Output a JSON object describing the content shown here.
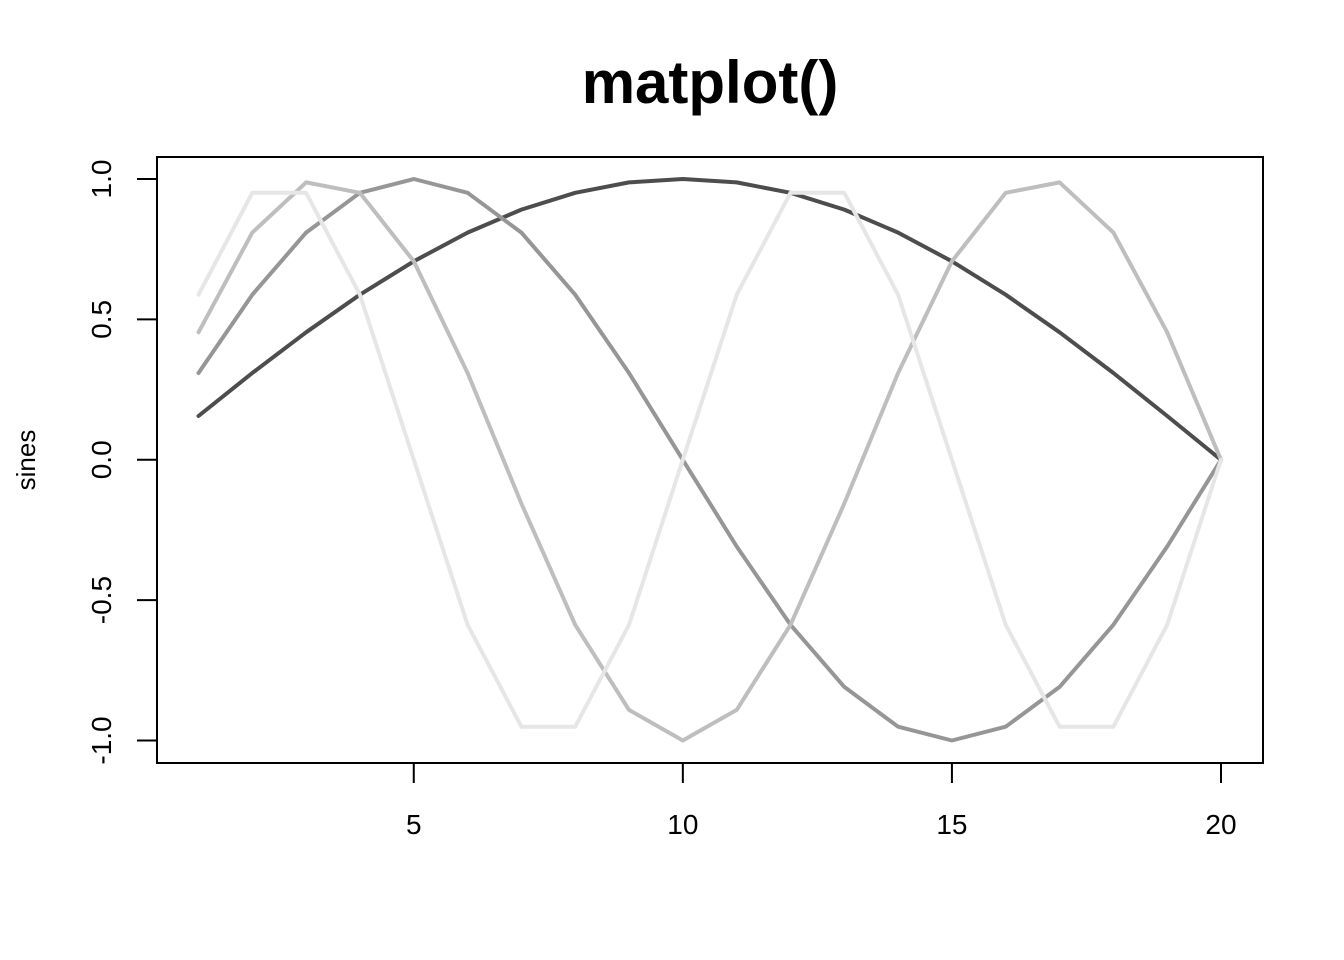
{
  "chart_data": {
    "type": "line",
    "title": "matplot()",
    "xlabel": "",
    "ylabel": "sines",
    "xlim": [
      1,
      20
    ],
    "ylim": [
      -1,
      1
    ],
    "x_ticks": [
      "5",
      "10",
      "15",
      "20"
    ],
    "y_ticks": [
      "-1.0",
      "-0.5",
      "0.0",
      "0.5",
      "1.0"
    ],
    "grid": false,
    "legend": "none",
    "x": [
      1,
      2,
      3,
      4,
      5,
      6,
      7,
      8,
      9,
      10,
      11,
      12,
      13,
      14,
      15,
      16,
      17,
      18,
      19,
      20
    ],
    "series": [
      {
        "color": "#4d4d4d",
        "values": [
          0.156,
          0.309,
          0.454,
          0.588,
          0.707,
          0.809,
          0.891,
          0.951,
          0.988,
          1.0,
          0.988,
          0.951,
          0.891,
          0.809,
          0.707,
          0.588,
          0.454,
          0.309,
          0.156,
          0.0
        ]
      },
      {
        "color": "#969696",
        "values": [
          0.309,
          0.588,
          0.809,
          0.951,
          1.0,
          0.951,
          0.809,
          0.588,
          0.309,
          0.0,
          -0.309,
          -0.588,
          -0.809,
          -0.951,
          -1.0,
          -0.951,
          -0.809,
          -0.588,
          -0.309,
          0.0
        ]
      },
      {
        "color": "#bebebe",
        "values": [
          0.454,
          0.809,
          0.988,
          0.951,
          0.707,
          0.309,
          -0.156,
          -0.588,
          -0.891,
          -1.0,
          -0.891,
          -0.588,
          -0.156,
          0.309,
          0.707,
          0.951,
          0.988,
          0.809,
          0.454,
          0.0
        ]
      },
      {
        "color": "#e6e6e6",
        "values": [
          0.588,
          0.951,
          0.951,
          0.588,
          0.0,
          -0.588,
          -0.951,
          -0.951,
          -0.588,
          0.0,
          0.588,
          0.951,
          0.951,
          0.588,
          0.0,
          -0.588,
          -0.951,
          -0.951,
          -0.588,
          0.0
        ]
      }
    ]
  }
}
